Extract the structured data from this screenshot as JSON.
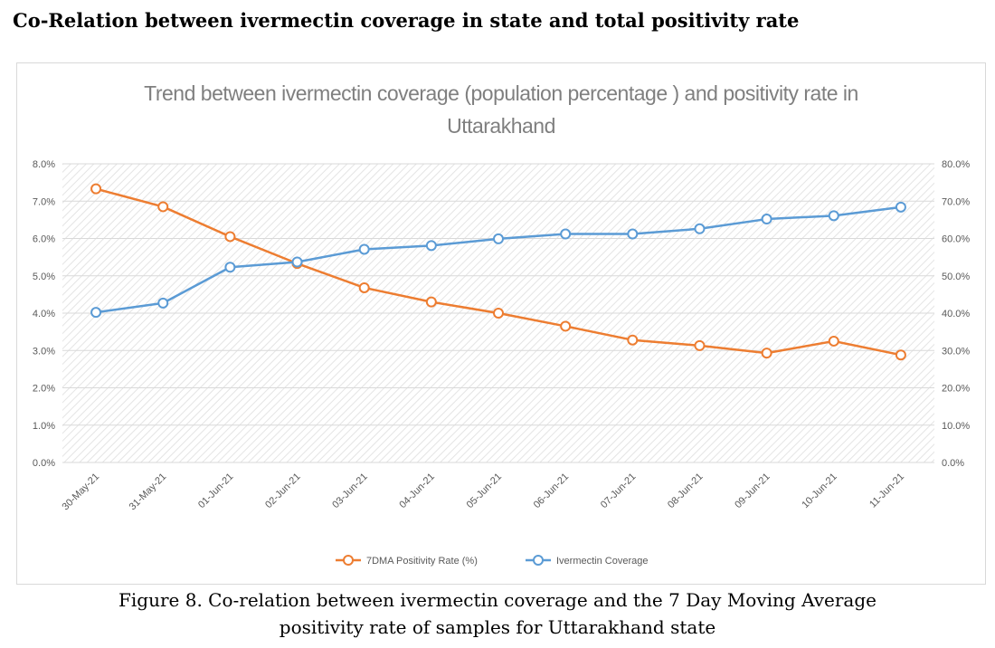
{
  "page_heading": "Co-Relation between ivermectin coverage in state and total positivity rate",
  "caption": {
    "line1": "Figure 8. Co-relation between ivermectin coverage and the 7 Day Moving Average",
    "line2": "positivity rate of samples for  Uttarakhand state"
  },
  "chart_data": {
    "type": "line",
    "title_line1": "Trend between ivermectin coverage (population percentage ) and positivity rate in",
    "title_line2": "Uttarakhand",
    "categories": [
      "30-May-21",
      "31-May-21",
      "01-Jun-21",
      "02-Jun-21",
      "03-Jun-21",
      "04-Jun-21",
      "05-Jun-21",
      "06-Jun-21",
      "07-Jun-21",
      "08-Jun-21",
      "09-Jun-21",
      "10-Jun-21",
      "11-Jun-21"
    ],
    "y_left": {
      "range": [
        0,
        8
      ],
      "ticks": [
        "0.0%",
        "1.0%",
        "2.0%",
        "3.0%",
        "4.0%",
        "5.0%",
        "6.0%",
        "7.0%",
        "8.0%"
      ]
    },
    "y_right": {
      "range": [
        0,
        80
      ],
      "ticks": [
        "0.0%",
        "10.0%",
        "20.0%",
        "30.0%",
        "40.0%",
        "50.0%",
        "60.0%",
        "70.0%",
        "80.0%"
      ]
    },
    "series": [
      {
        "name": "7DMA Positivity Rate (%)",
        "axis": "left",
        "color": "#ed7d31",
        "values": [
          7.33,
          6.85,
          6.05,
          5.33,
          4.68,
          4.3,
          4.0,
          3.65,
          3.28,
          3.13,
          2.93,
          3.25,
          2.88
        ]
      },
      {
        "name": "Ivermectin Coverage",
        "axis": "right",
        "color": "#5b9bd5",
        "values": [
          40.2,
          42.7,
          52.3,
          53.7,
          57.1,
          58.1,
          59.9,
          61.2,
          61.2,
          62.6,
          65.2,
          66.1,
          68.4
        ]
      }
    ],
    "grid": true,
    "legend_position": "bottom"
  }
}
